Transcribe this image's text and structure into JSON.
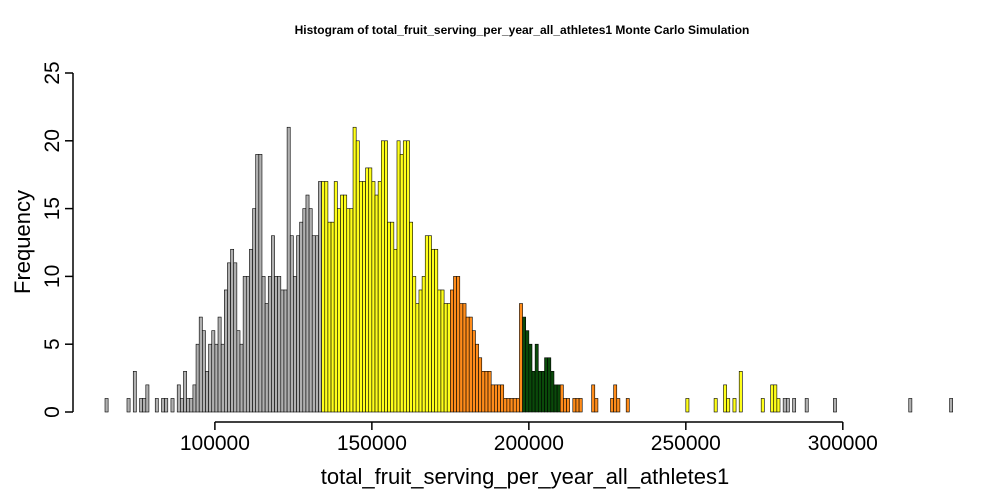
{
  "chart_data": {
    "type": "bar",
    "title": "Histogram of  total_fruit_serving_per_year_all_athletes1  Monte Carlo Simulation",
    "xlabel": "total_fruit_serving_per_year_all_athletes1",
    "ylabel": "Frequency",
    "x_start": 65000,
    "bin_width": 1000,
    "xlim": [
      65000,
      330000
    ],
    "ylim": [
      0,
      25
    ],
    "x_ticks": [
      {
        "value": 100000,
        "label": "100000"
      },
      {
        "value": 150000,
        "label": "150000"
      },
      {
        "value": 200000,
        "label": "200000"
      },
      {
        "value": 250000,
        "label": "250000"
      },
      {
        "value": 300000,
        "label": "300000"
      }
    ],
    "y_ticks": [
      {
        "value": 0,
        "label": "0"
      },
      {
        "value": 5,
        "label": "5"
      },
      {
        "value": 10,
        "label": "10"
      },
      {
        "value": 15,
        "label": "15"
      },
      {
        "value": 20,
        "label": "20"
      },
      {
        "value": 25,
        "label": "25"
      }
    ],
    "grid": false,
    "legend": "none",
    "colors": {
      "tail": "#b0b0b0",
      "outer": "#ffff1a",
      "inner": "#ff8c1a",
      "center": "#0a4a0a"
    },
    "color_regions": [
      {
        "from": 65000,
        "to": 134000,
        "color": "tail"
      },
      {
        "from": 134000,
        "to": 175000,
        "color": "outer"
      },
      {
        "from": 175000,
        "to": 198000,
        "color": "inner"
      },
      {
        "from": 198000,
        "to": 210000,
        "color": "center"
      },
      {
        "from": 210000,
        "to": 234000,
        "color": "inner"
      },
      {
        "from": 234000,
        "to": 280000,
        "color": "outer"
      },
      {
        "from": 280000,
        "to": 330000,
        "color": "tail"
      }
    ],
    "values": [
      1,
      0,
      0,
      0,
      0,
      0,
      0,
      1,
      0,
      3,
      0,
      1,
      1,
      2,
      0,
      0,
      1,
      0,
      1,
      1,
      0,
      1,
      0,
      2,
      1,
      3,
      1,
      1,
      2,
      5,
      7,
      6,
      3,
      5,
      6,
      5,
      7,
      5,
      9,
      11,
      12,
      11,
      6,
      5,
      10,
      10,
      12,
      15,
      19,
      19,
      10,
      8,
      10,
      13,
      10,
      10,
      9,
      9,
      21,
      13,
      10,
      13,
      14,
      15,
      16,
      15,
      13,
      13,
      17,
      17,
      17,
      14,
      14,
      17,
      15,
      16,
      16,
      15,
      15,
      21,
      20,
      17,
      17,
      18,
      18,
      17,
      16,
      17,
      20,
      20,
      14,
      14,
      12,
      20,
      19,
      20,
      20,
      14,
      10,
      8,
      9,
      10,
      13,
      13,
      12,
      12,
      9,
      9,
      8,
      8,
      9,
      10,
      10,
      8,
      8,
      7,
      7,
      6,
      5,
      4,
      3,
      3,
      3,
      2,
      2,
      2,
      2,
      1,
      1,
      1,
      1,
      1,
      8,
      7,
      6,
      5,
      3,
      5,
      3,
      3,
      4,
      4,
      3,
      2,
      2,
      2,
      1,
      1,
      0,
      1,
      1,
      1,
      0,
      0,
      0,
      2,
      1,
      0,
      0,
      0,
      0,
      1,
      2,
      1,
      0,
      0,
      1,
      0,
      0,
      0,
      0,
      0,
      0,
      0,
      0,
      0,
      0,
      0,
      0,
      0,
      0,
      0,
      0,
      0,
      0,
      1,
      0,
      0,
      0,
      0,
      0,
      0,
      0,
      0,
      1,
      0,
      0,
      2,
      1,
      0,
      1,
      0,
      3,
      0,
      0,
      0,
      0,
      0,
      0,
      1,
      0,
      0,
      2,
      2,
      1,
      0,
      1,
      1,
      0,
      1,
      0,
      0,
      0,
      1,
      0,
      0,
      0,
      0,
      0,
      0,
      0,
      0,
      1,
      0,
      0,
      0,
      0,
      0,
      0,
      0,
      0,
      0,
      0,
      0,
      0,
      0,
      0,
      0,
      0,
      0,
      0,
      0,
      0,
      0,
      0,
      0,
      1,
      0,
      0,
      0,
      0,
      0,
      0,
      0,
      0,
      0,
      0,
      0,
      0,
      1
    ]
  }
}
